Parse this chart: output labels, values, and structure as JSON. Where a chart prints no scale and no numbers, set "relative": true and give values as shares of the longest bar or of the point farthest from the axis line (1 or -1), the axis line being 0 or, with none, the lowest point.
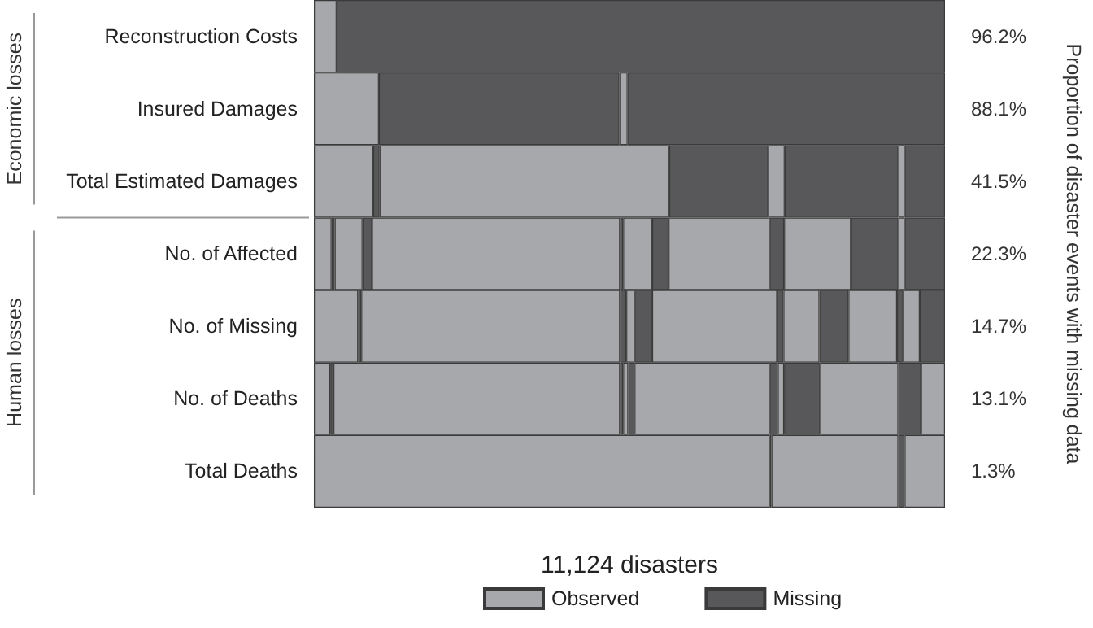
{
  "chart_data": {
    "type": "bar",
    "orientation": "horizontal",
    "stacked": true,
    "relative": true,
    "categories": [
      "Reconstruction Costs",
      "Insured Damages",
      "Total Estimated Damages",
      "No. of Affected",
      "No. of Missing",
      "No. of Deaths",
      "Total Deaths"
    ],
    "xlabel": "11,124 disasters",
    "series": [
      {
        "name": "Observed",
        "color": "#a7a8ab",
        "values": [
          0.036,
          0.103,
          0.094,
          0.028,
          0.07,
          0.026,
          0.722
        ]
      },
      {
        "name": "Missing",
        "color": "#58585a",
        "values": [
          0.964,
          0.381,
          0.01,
          0.005,
          0.005,
          0.005,
          0.003
        ]
      },
      {
        "color": "#a7a8ab",
        "values": [
          null,
          0.013,
          0.459,
          0.044,
          0.41,
          0.454,
          0.201
        ]
      },
      {
        "color": "#58585a",
        "values": [
          null,
          0.503,
          0.157,
          0.015,
          0.01,
          0.005,
          0.01
        ]
      },
      {
        "color": "#a7a8ab",
        "values": [
          null,
          null,
          0.026,
          0.393,
          0.013,
          0.008,
          0.064
        ]
      },
      {
        "color": "#58585a",
        "values": [
          null,
          null,
          0.18,
          0.005,
          0.028,
          0.01,
          null
        ]
      },
      {
        "color": "#a7a8ab",
        "values": [
          null,
          null,
          0.01,
          0.046,
          0.198,
          0.214,
          null
        ]
      },
      {
        "color": "#58585a",
        "values": [
          null,
          null,
          0.064,
          0.026,
          0.01,
          0.013,
          null
        ]
      },
      {
        "color": "#a7a8ab",
        "values": [
          null,
          null,
          null,
          0.16,
          0.057,
          0.01,
          null
        ]
      },
      {
        "color": "#58585a",
        "values": [
          null,
          null,
          null,
          0.023,
          0.046,
          0.057,
          null
        ]
      },
      {
        "color": "#a7a8ab",
        "values": [
          null,
          null,
          null,
          0.106,
          0.077,
          0.124,
          null
        ]
      },
      {
        "color": "#58585a",
        "values": [
          null,
          null,
          null,
          0.075,
          0.01,
          0.036,
          null
        ]
      },
      {
        "color": "#a7a8ab",
        "values": [
          null,
          null,
          null,
          0.01,
          0.026,
          0.038,
          null
        ]
      },
      {
        "color": "#58585a",
        "values": [
          null,
          null,
          null,
          0.064,
          0.04,
          null,
          null
        ]
      }
    ],
    "annotations": [
      "96.2%",
      "88.1%",
      "41.5%",
      "22.3%",
      "14.7%",
      "13.1%",
      "1.3%",
      "Proportion of disaster events with missing data",
      "Economic losses",
      "Human losses"
    ],
    "legend": "bottom",
    "grid": false
  }
}
